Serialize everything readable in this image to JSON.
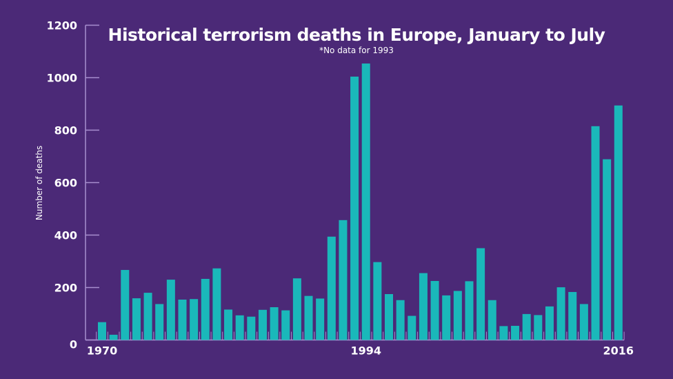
{
  "chart_data": {
    "type": "bar",
    "title": "Historical terrorism deaths in Europe, January to July",
    "subtitle": "*No data for 1993",
    "xlabel": "",
    "ylabel": "Number of deaths",
    "ylim": [
      0,
      1200
    ],
    "yticks": [
      0,
      200,
      400,
      600,
      800,
      1000,
      1200
    ],
    "xtick_labels": [
      "1970",
      "1994",
      "2016"
    ],
    "grid": false,
    "categories": [
      "1970",
      "1971",
      "1972",
      "1973",
      "1974",
      "1975",
      "1976",
      "1977",
      "1978",
      "1979",
      "1980",
      "1981",
      "1982",
      "1983",
      "1984",
      "1985",
      "1986",
      "1987",
      "1988",
      "1989",
      "1990",
      "1991",
      "1992",
      "1994",
      "1995",
      "1996",
      "1997",
      "1998",
      "1999",
      "2000",
      "2001",
      "2002",
      "2003",
      "2004",
      "2005",
      "2006",
      "2007",
      "2008",
      "2009",
      "2010",
      "2011",
      "2012",
      "2013",
      "2014",
      "2015",
      "2016"
    ],
    "values": [
      68,
      20,
      267,
      159,
      180,
      137,
      230,
      154,
      156,
      233,
      273,
      116,
      94,
      89,
      115,
      125,
      113,
      235,
      168,
      158,
      394,
      457,
      1004,
      1054,
      297,
      175,
      152,
      92,
      255,
      225,
      170,
      187,
      224,
      350,
      152,
      53,
      54,
      99,
      95,
      128,
      201,
      183,
      137,
      815,
      689,
      894
    ],
    "colors": {
      "background": "#4b2977",
      "bar": "#1ab8ba",
      "axis": "#a88fcf",
      "text": "#ffffff"
    }
  }
}
